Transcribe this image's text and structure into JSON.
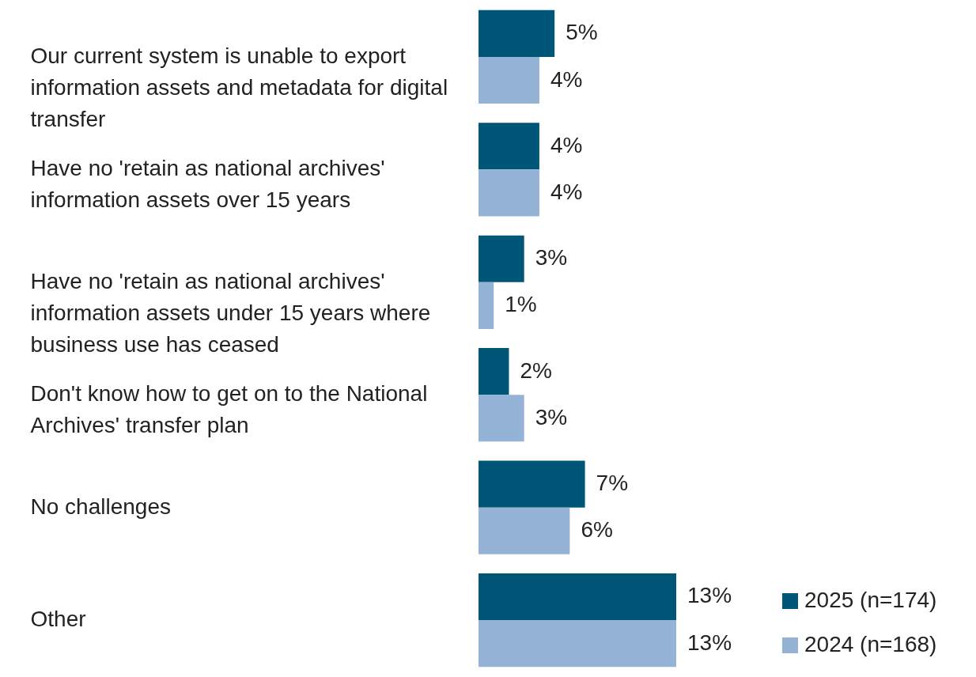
{
  "chart_data": {
    "type": "bar",
    "orientation": "horizontal",
    "categories": [
      "Our current system is unable to export information assets and metadata for digital transfer",
      "Have no 'retain as national archives' information assets over 15 years",
      "Have no 'retain as national archives' information assets under 15 years where business use has ceased",
      "Don't know how to get on to the National Archives' transfer plan",
      "No challenges",
      "Other"
    ],
    "series": [
      {
        "name": "2025 (n=174)",
        "color": "#005677",
        "values": [
          5,
          4,
          3,
          2,
          7,
          13
        ],
        "value_labels": [
          "5%",
          "4%",
          "3%",
          "2%",
          "7%",
          "13%"
        ]
      },
      {
        "name": "2024 (n=168)",
        "color": "#95b3d7",
        "values": [
          4,
          4,
          1,
          3,
          6,
          13
        ],
        "value_labels": [
          "4%",
          "4%",
          "1%",
          "3%",
          "6%",
          "13%"
        ]
      }
    ],
    "legend": "bottom right",
    "grid": false
  }
}
